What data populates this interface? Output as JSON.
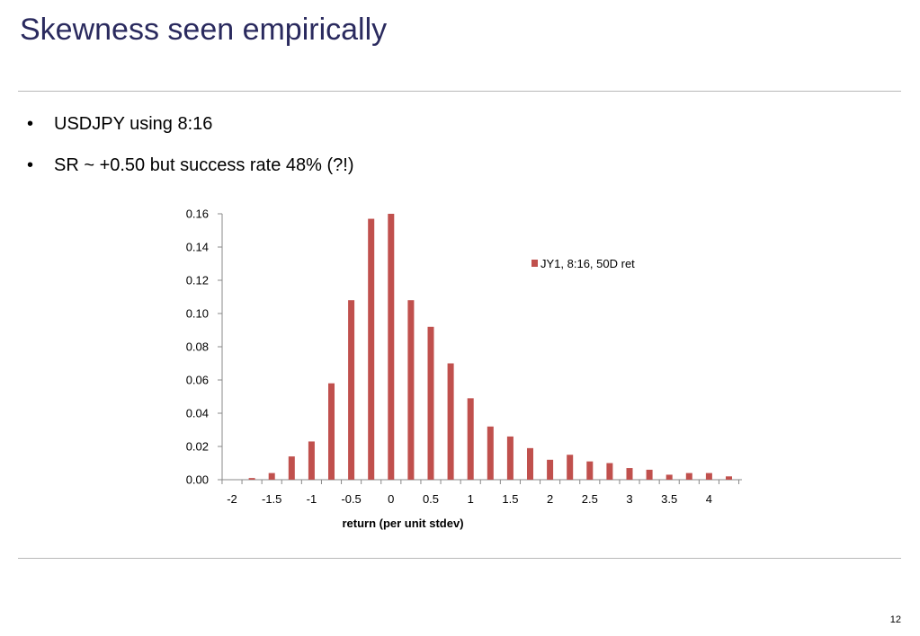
{
  "slide": {
    "title": "Skewness seen empirically",
    "bullets": [
      "USDJPY using 8:16",
      "SR ~ +0.50 but success rate 48% (?!)"
    ],
    "page_number": "12"
  },
  "colors": {
    "title": "#2a2a5e",
    "bar": "#c0504d",
    "axis": "#888888"
  },
  "chart_data": {
    "type": "bar",
    "categories": [
      "-2",
      "-1.75",
      "-1.5",
      "-1.25",
      "-1",
      "-0.75",
      "-0.5",
      "-0.25",
      "0",
      "0.25",
      "0.5",
      "0.75",
      "1",
      "1.25",
      "1.5",
      "1.75",
      "2",
      "2.25",
      "2.5",
      "2.75",
      "3",
      "3.25",
      "3.5",
      "3.75",
      "4",
      "4.25"
    ],
    "x_tick_labels": [
      "-2",
      "-1.5",
      "-1",
      "-0.5",
      "0",
      "0.5",
      "1",
      "1.5",
      "2",
      "2.5",
      "3",
      "3.5",
      "4"
    ],
    "series": [
      {
        "name": "JY1, 8:16, 50D ret",
        "values": [
          0.0,
          0.001,
          0.004,
          0.014,
          0.023,
          0.058,
          0.108,
          0.157,
          0.16,
          0.108,
          0.092,
          0.07,
          0.049,
          0.032,
          0.026,
          0.019,
          0.012,
          0.015,
          0.011,
          0.01,
          0.007,
          0.006,
          0.003,
          0.004,
          0.004,
          0.002
        ]
      }
    ],
    "y_ticks": [
      "0.00",
      "0.02",
      "0.04",
      "0.06",
      "0.08",
      "0.10",
      "0.12",
      "0.14",
      "0.16"
    ],
    "ylim": [
      0,
      0.16
    ],
    "xlabel": "return (per unit stdev)",
    "ylabel": "",
    "legend_position": "top-right",
    "grid": false
  }
}
